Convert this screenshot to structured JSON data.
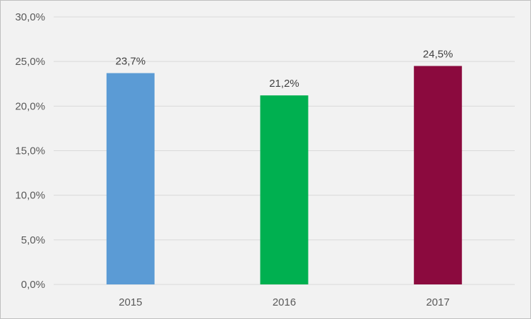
{
  "chart_data": {
    "type": "bar",
    "title": "",
    "xlabel": "",
    "ylabel": "",
    "categories": [
      "2015",
      "2016",
      "2017"
    ],
    "values": [
      23.7,
      21.2,
      24.5
    ],
    "data_labels": [
      "23,7%",
      "21,2%",
      "24,5%"
    ],
    "bar_colors": [
      "#5b9bd5",
      "#00b050",
      "#8b0a3e"
    ],
    "ylim": [
      0,
      30
    ],
    "y_ticks": [
      0,
      5,
      10,
      15,
      20,
      25,
      30
    ],
    "y_tick_labels": [
      "0,0%",
      "5,0%",
      "10,0%",
      "15,0%",
      "20,0%",
      "25,0%",
      "30,0%"
    ],
    "grid": true,
    "legend": "none"
  }
}
